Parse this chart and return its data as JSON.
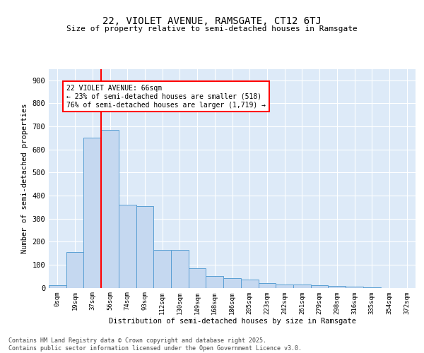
{
  "title1": "22, VIOLET AVENUE, RAMSGATE, CT12 6TJ",
  "title2": "Size of property relative to semi-detached houses in Ramsgate",
  "xlabel": "Distribution of semi-detached houses by size in Ramsgate",
  "ylabel": "Number of semi-detached properties",
  "bin_labels": [
    "0sqm",
    "19sqm",
    "37sqm",
    "56sqm",
    "74sqm",
    "93sqm",
    "112sqm",
    "130sqm",
    "149sqm",
    "168sqm",
    "186sqm",
    "205sqm",
    "223sqm",
    "242sqm",
    "261sqm",
    "279sqm",
    "298sqm",
    "316sqm",
    "335sqm",
    "354sqm",
    "372sqm"
  ],
  "bar_heights": [
    10,
    155,
    650,
    685,
    360,
    355,
    165,
    165,
    85,
    50,
    40,
    35,
    20,
    15,
    15,
    10,
    8,
    5,
    3,
    0,
    0
  ],
  "bar_color": "#c5d8f0",
  "bar_edge_color": "#5a9fd4",
  "property_line_x": 2.5,
  "property_line_color": "red",
  "annotation_text": "22 VIOLET AVENUE: 66sqm\n← 23% of semi-detached houses are smaller (518)\n76% of semi-detached houses are larger (1,719) →",
  "annotation_box_color": "white",
  "annotation_box_edge": "red",
  "ylim": [
    0,
    950
  ],
  "yticks": [
    0,
    100,
    200,
    300,
    400,
    500,
    600,
    700,
    800,
    900
  ],
  "footer_text": "Contains HM Land Registry data © Crown copyright and database right 2025.\nContains public sector information licensed under the Open Government Licence v3.0.",
  "bg_color": "#ddeaf8",
  "fig_bg_color": "#ffffff"
}
